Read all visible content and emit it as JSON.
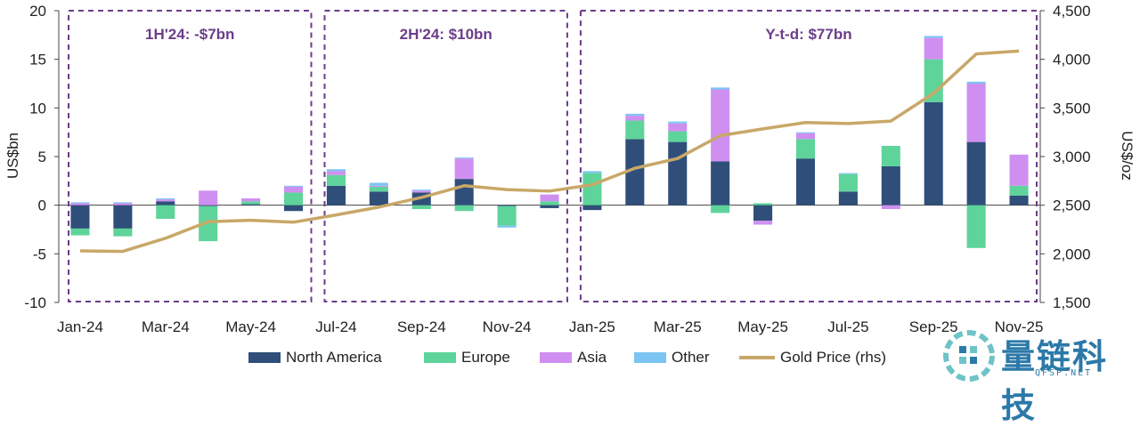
{
  "chart_data": {
    "type": "bar",
    "stacked": true,
    "categories": [
      "Jan-24",
      "Feb-24",
      "Mar-24",
      "Apr-24",
      "May-24",
      "Jun-24",
      "Jul-24",
      "Aug-24",
      "Sep-24",
      "Oct-24",
      "Nov-24",
      "Dec-24",
      "Jan-25",
      "Feb-25",
      "Mar-25",
      "Apr-25",
      "May-25",
      "Jun-25",
      "Jul-25",
      "Aug-25",
      "Sep-25",
      "Oct-25",
      "Nov-25"
    ],
    "x_tick_labels": [
      "Jan-24",
      "Mar-24",
      "May-24",
      "Jul-24",
      "Sep-24",
      "Nov-24",
      "Jan-25",
      "Mar-25",
      "May-25",
      "Jul-25",
      "Sep-25",
      "Nov-25"
    ],
    "series": [
      {
        "name": "North America",
        "color": "#2f4f7a",
        "values": [
          -2.4,
          -2.4,
          0.4,
          -0.1,
          0.1,
          -0.6,
          2.0,
          1.4,
          1.3,
          2.7,
          -0.1,
          -0.3,
          -0.5,
          6.8,
          6.5,
          4.5,
          -1.6,
          4.8,
          1.4,
          4.0,
          10.6,
          6.5,
          1.0
        ]
      },
      {
        "name": "Europe",
        "color": "#5ed49a",
        "values": [
          -0.7,
          -0.8,
          -1.4,
          -3.6,
          0.3,
          1.3,
          1.1,
          0.5,
          -0.4,
          -0.6,
          -2.0,
          0.4,
          3.3,
          1.9,
          1.1,
          -0.8,
          0.2,
          2.0,
          1.8,
          2.1,
          4.4,
          -4.4,
          1.0
        ]
      },
      {
        "name": "Asia",
        "color": "#cf8ff0",
        "values": [
          0.2,
          0.2,
          0.2,
          1.5,
          0.3,
          0.6,
          0.4,
          0.1,
          0.2,
          2.1,
          0.0,
          0.7,
          0.0,
          0.5,
          0.8,
          7.4,
          -0.4,
          0.6,
          0.0,
          -0.4,
          2.2,
          6.0,
          3.2
        ]
      },
      {
        "name": "Other",
        "color": "#7cc4f2",
        "values": [
          0.1,
          0.1,
          0.1,
          0.0,
          0.0,
          0.1,
          0.2,
          0.3,
          0.1,
          0.1,
          -0.2,
          0.0,
          0.2,
          0.2,
          0.2,
          0.2,
          0.0,
          0.1,
          0.1,
          0.0,
          0.2,
          0.2,
          0.0
        ]
      }
    ],
    "line_series": {
      "name": "Gold Price (rhs)",
      "color": "#c8a868",
      "axis": "right",
      "values": [
        2030,
        2025,
        2160,
        2330,
        2345,
        2325,
        2400,
        2480,
        2580,
        2700,
        2660,
        2645,
        2710,
        2880,
        2980,
        3215,
        3285,
        3350,
        3340,
        3365,
        3650,
        4055,
        4085
      ]
    },
    "ylabel": "US$bn",
    "ylim": [
      -10,
      20
    ],
    "y_ticks": [
      -10,
      -5,
      0,
      5,
      10,
      15,
      20
    ],
    "ylabel_right": "US$/oz",
    "ylim_right": [
      1500,
      4500
    ],
    "y_ticks_right": [
      "1,500",
      "2,000",
      "2,500",
      "3,000",
      "3,500",
      "4,000",
      "4,500"
    ],
    "y_ticks_right_values": [
      1500,
      2000,
      2500,
      3000,
      3500,
      4000,
      4500
    ],
    "annotations": [
      {
        "text": "1H'24: -$7bn",
        "from": "Jan-24",
        "to": "Jun-24"
      },
      {
        "text": "2H'24: $10bn",
        "from": "Jul-24",
        "to": "Dec-24"
      },
      {
        "text": "Y-t-d: $77bn",
        "from": "Jan-25",
        "to": "Nov-25"
      }
    ],
    "annotation_color": "#6b3d8a",
    "legend_position": "bottom"
  },
  "watermark": {
    "text": "量链科技",
    "sub": "QFSP.NET",
    "color": "#2b79a8"
  }
}
